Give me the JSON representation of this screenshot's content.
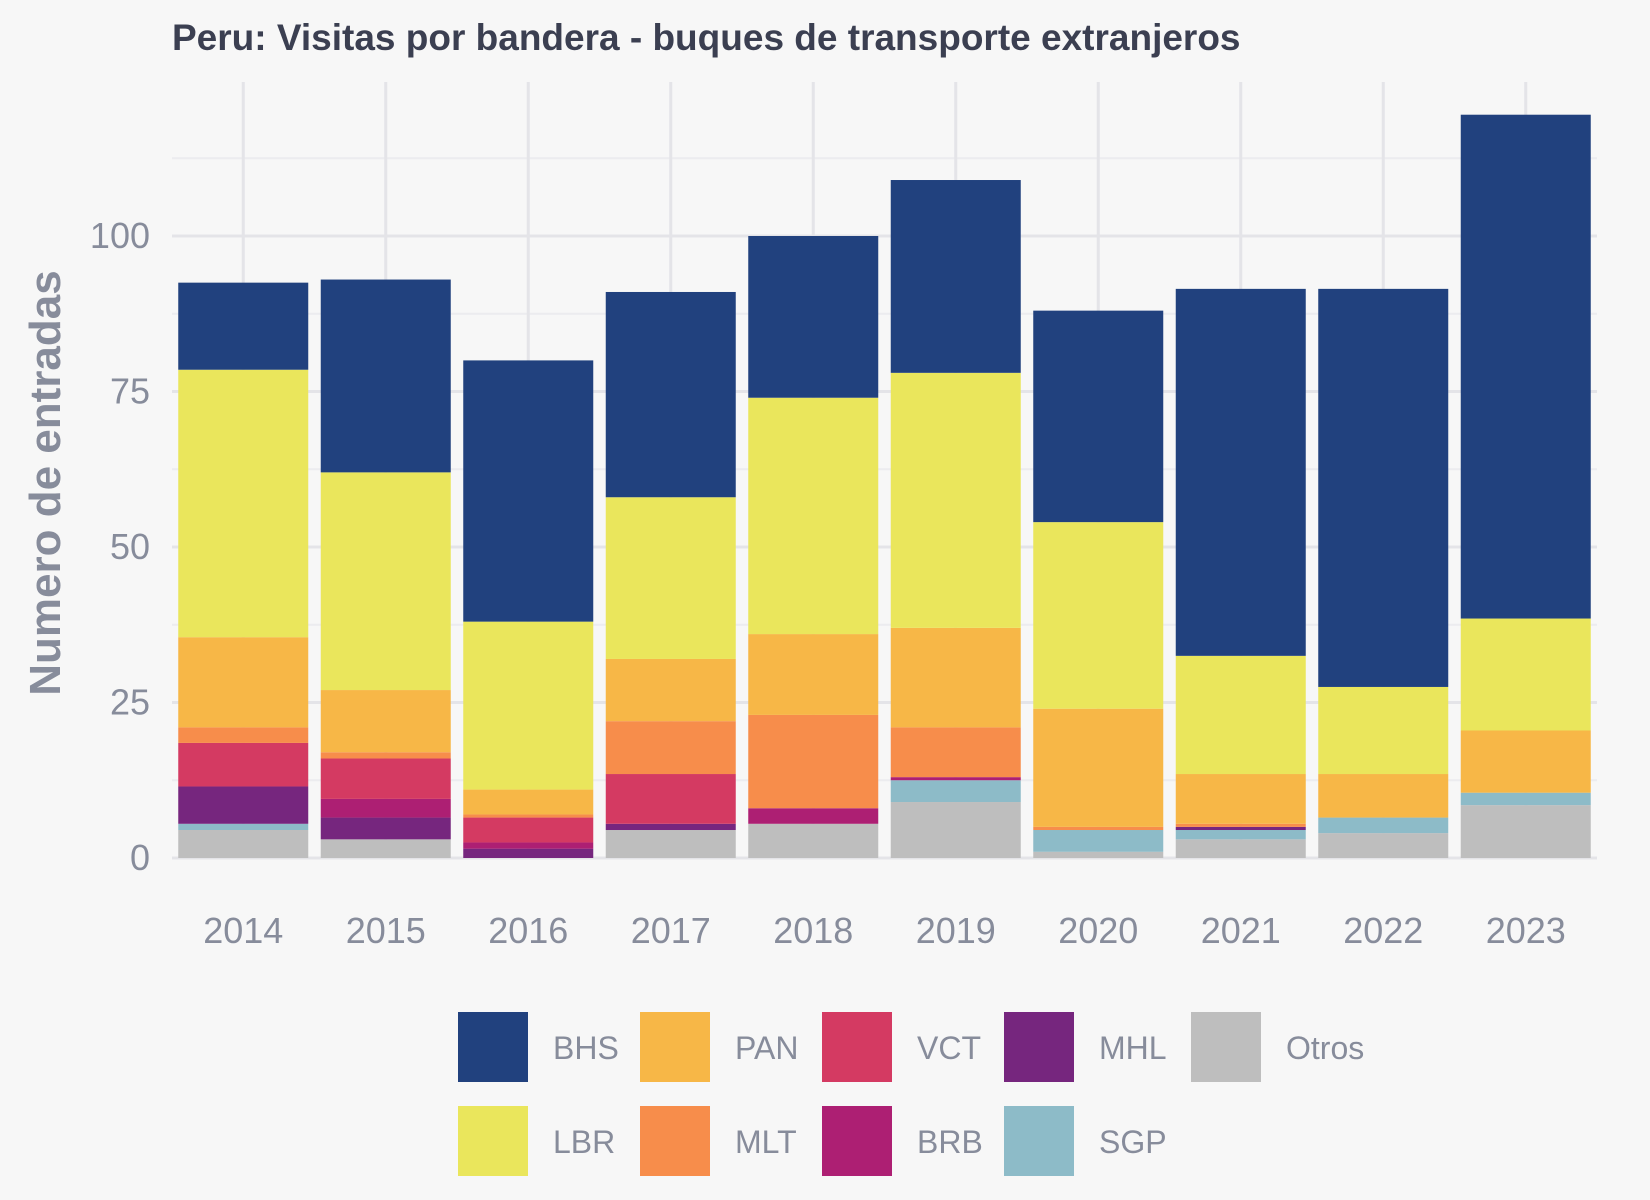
{
  "chart_data": {
    "type": "bar",
    "stacked": true,
    "title": "Peru:  Visitas por bandera - buques de transporte extranjeros",
    "xlabel": "",
    "ylabel": "Numero de entradas",
    "ylim": [
      0,
      125
    ],
    "yticks": [
      0,
      25,
      50,
      75,
      100
    ],
    "grid": true,
    "legend_position": "bottom",
    "categories": [
      "2014",
      "2015",
      "2016",
      "2017",
      "2018",
      "2019",
      "2020",
      "2021",
      "2022",
      "2023"
    ],
    "series": [
      {
        "name": "Otros",
        "color": "#bebebe",
        "values": [
          4.5,
          3,
          0,
          4.5,
          5.5,
          9,
          1,
          3,
          4,
          8.5
        ]
      },
      {
        "name": "SGP",
        "color": "#8dbbc8",
        "values": [
          1,
          0,
          0,
          0,
          0,
          3.5,
          3.5,
          1.5,
          2.5,
          2
        ]
      },
      {
        "name": "MHL",
        "color": "#76267e",
        "values": [
          6,
          3.5,
          1.5,
          1,
          0,
          0,
          0,
          0.5,
          0,
          0
        ]
      },
      {
        "name": "BRB",
        "color": "#ad1f73",
        "values": [
          0,
          3,
          1,
          0,
          2.5,
          0.5,
          0,
          0,
          0,
          0
        ]
      },
      {
        "name": "VCT",
        "color": "#d43a62",
        "values": [
          7,
          6.5,
          4,
          8,
          0,
          0,
          0,
          0,
          0,
          0
        ]
      },
      {
        "name": "MLT",
        "color": "#f78d4b",
        "values": [
          2.5,
          1,
          0.5,
          8.5,
          15,
          8,
          0.5,
          0.5,
          0,
          0
        ]
      },
      {
        "name": "PAN",
        "color": "#f7b747",
        "values": [
          14.5,
          10,
          4,
          10,
          13,
          16,
          19,
          8,
          7,
          10
        ]
      },
      {
        "name": "LBR",
        "color": "#eae65c",
        "values": [
          43,
          35,
          27,
          26,
          38,
          41,
          30,
          19,
          14,
          18
        ]
      },
      {
        "name": "BHS",
        "color": "#21417e",
        "values": [
          14,
          31,
          42,
          33,
          26,
          31,
          34,
          59,
          64,
          81
        ]
      }
    ],
    "legend_order": [
      "BHS",
      "PAN",
      "VCT",
      "MHL",
      "Otros",
      "LBR",
      "MLT",
      "BRB",
      "SGP"
    ]
  }
}
